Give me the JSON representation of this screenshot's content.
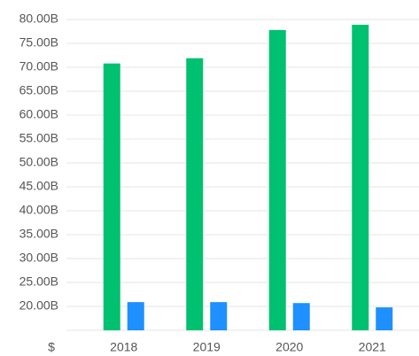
{
  "chart_data": {
    "type": "bar",
    "axis_unit_label": "$",
    "categories": [
      "2018",
      "2019",
      "2020",
      "2021"
    ],
    "series": [
      {
        "color": "#00c170",
        "values": [
          70.8,
          71.9,
          77.8,
          78.9
        ]
      },
      {
        "color": "#1e90ff",
        "values": [
          20.9,
          20.9,
          20.7,
          19.8
        ]
      }
    ],
    "ylim": [
      15,
      80
    ],
    "yticks": [
      {
        "value": 20,
        "label": "20.00B"
      },
      {
        "value": 25,
        "label": "25.00B"
      },
      {
        "value": 30,
        "label": "30.00B"
      },
      {
        "value": 35,
        "label": "35.00B"
      },
      {
        "value": 40,
        "label": "40.00B"
      },
      {
        "value": 45,
        "label": "45.00B"
      },
      {
        "value": 50,
        "label": "50.00B"
      },
      {
        "value": 55,
        "label": "55.00B"
      },
      {
        "value": 60,
        "label": "60.00B"
      },
      {
        "value": 65,
        "label": "65.00B"
      },
      {
        "value": 70,
        "label": "70.00B"
      },
      {
        "value": 75,
        "label": "75.00B"
      },
      {
        "value": 80,
        "label": "80.00B"
      }
    ],
    "grid": true
  }
}
